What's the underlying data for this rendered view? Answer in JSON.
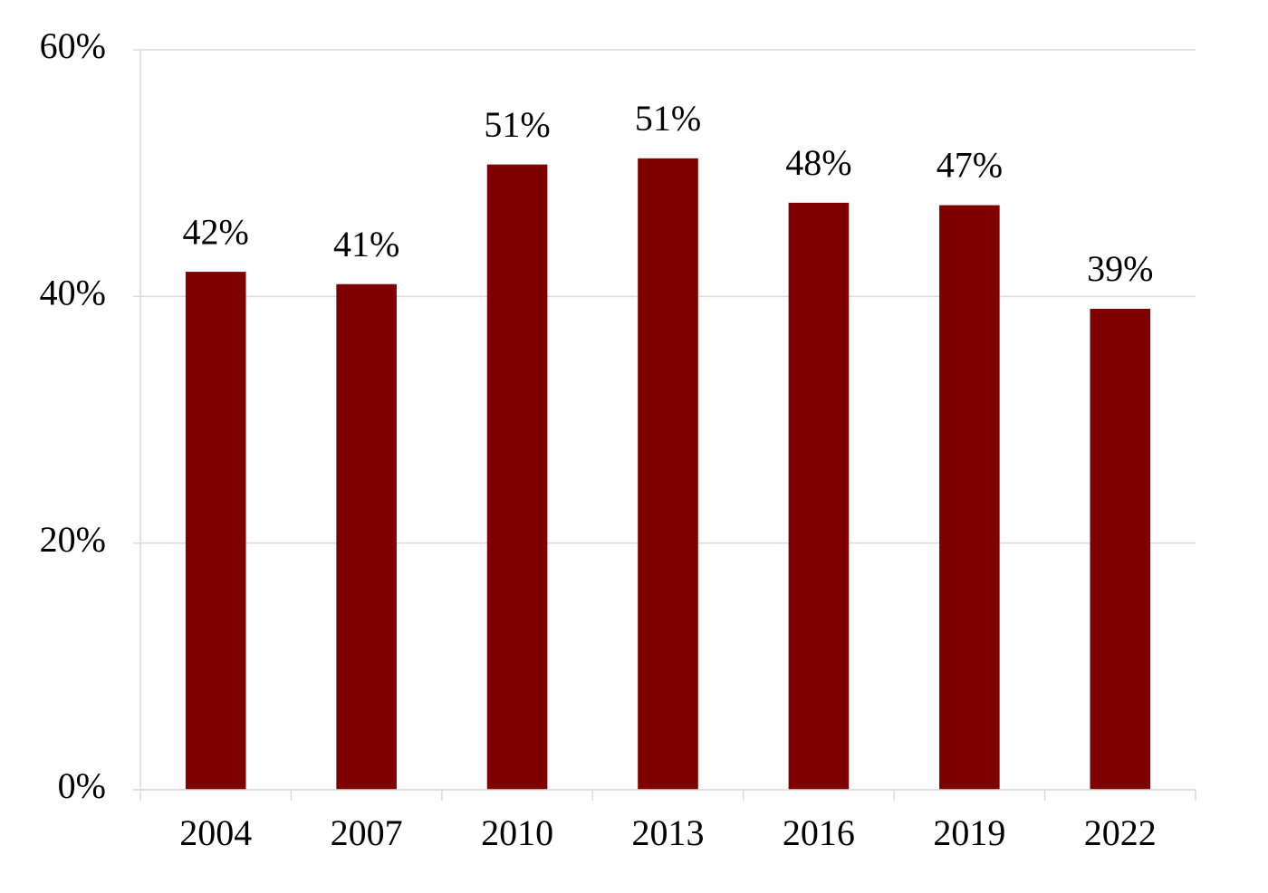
{
  "chart_data": {
    "type": "bar",
    "categories": [
      "2004",
      "2007",
      "2010",
      "2013",
      "2016",
      "2019",
      "2022"
    ],
    "values": [
      42,
      41,
      50.7,
      51.2,
      47.6,
      47.4,
      39
    ],
    "value_labels": [
      "42%",
      "41%",
      "51%",
      "51%",
      "48%",
      "47%",
      "39%"
    ],
    "color": "#7f0000",
    "ylim": [
      0,
      60
    ],
    "yticks": [
      {
        "value": 0,
        "label": "0%"
      },
      {
        "value": 20,
        "label": "20%"
      },
      {
        "value": 40,
        "label": "40%"
      },
      {
        "value": 60,
        "label": "60%"
      }
    ],
    "grid": true
  }
}
